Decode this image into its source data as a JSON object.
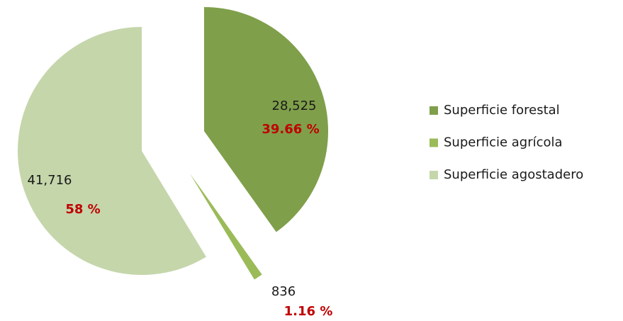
{
  "chart_data": {
    "type": "pie",
    "categories": [
      "Superficie forestal",
      "Superficie agrícola",
      "Superficie agostadero"
    ],
    "values": [
      28525,
      836,
      41716
    ],
    "value_labels": [
      "28,525",
      "836",
      "41,716"
    ],
    "percentages": [
      39.66,
      1.16,
      58
    ],
    "percentage_labels": [
      "39.66 %",
      "1.16 %",
      "58 %"
    ],
    "colors": [
      "#7f9f4a",
      "#9bbb59",
      "#c5d6ab"
    ]
  }
}
